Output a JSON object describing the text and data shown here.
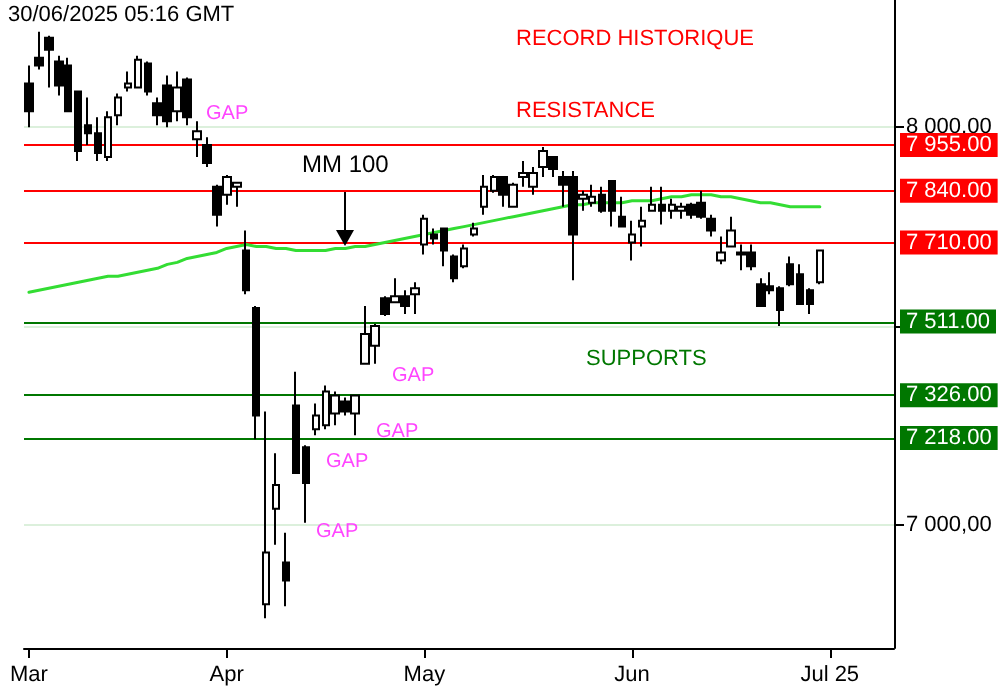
{
  "chart_data": {
    "type": "candlestick",
    "categories": [
      "Mar",
      null,
      null,
      null,
      null,
      null,
      null,
      null,
      null,
      null,
      null,
      null,
      null,
      null,
      null,
      null,
      null,
      null,
      null,
      null,
      "Apr",
      null,
      null,
      null,
      null,
      null,
      null,
      null,
      null,
      null,
      null,
      null,
      null,
      null,
      null,
      null,
      null,
      null,
      null,
      null,
      "May",
      null,
      null,
      null,
      null,
      null,
      null,
      null,
      null,
      null,
      null,
      null,
      null,
      null,
      null,
      null,
      null,
      null,
      null,
      null,
      null,
      "Jun",
      null,
      null,
      null,
      null,
      null,
      null,
      null,
      null,
      null,
      null,
      null,
      null,
      null,
      null,
      null,
      null,
      null,
      null,
      null,
      "Jul 25",
      null,
      null,
      null,
      null,
      null,
      null
    ],
    "series": [
      {
        "type": "candlestick",
        "color": "#000000",
        "ohlc": [
          [
            8110,
            8155,
            8000,
            8040
          ],
          [
            8175,
            8240,
            8145,
            8155
          ],
          [
            8225,
            8230,
            8100,
            8195
          ],
          [
            8165,
            8180,
            8080,
            8105
          ],
          [
            8155,
            8175,
            8040,
            8040
          ],
          [
            8090,
            8090,
            7915,
            7940
          ],
          [
            8005,
            8075,
            7955,
            7985
          ],
          [
            7985,
            8025,
            7915,
            7935
          ],
          [
            7925,
            8040,
            7915,
            8025
          ],
          [
            8030,
            8085,
            8005,
            8075
          ],
          [
            8100,
            8140,
            8090,
            8110
          ],
          [
            8100,
            8180,
            8100,
            8170
          ],
          [
            8160,
            8165,
            8080,
            8090
          ],
          [
            8060,
            8075,
            8005,
            8030
          ],
          [
            8105,
            8130,
            8000,
            8015
          ],
          [
            8040,
            8140,
            8015,
            8100
          ],
          [
            8120,
            8125,
            8005,
            8025
          ],
          [
            7970,
            8015,
            7925,
            7990
          ],
          [
            7955,
            7975,
            7900,
            7910
          ],
          [
            7850,
            7855,
            7750,
            7780
          ],
          [
            7830,
            7880,
            7805,
            7875
          ],
          [
            7850,
            7860,
            7800,
            7860
          ],
          [
            7690,
            7740,
            7580,
            7590
          ],
          [
            7545,
            7550,
            7215,
            7275
          ],
          [
            6800,
            7285,
            6765,
            6930
          ],
          [
            7040,
            7180,
            6950,
            7100
          ],
          [
            6905,
            6980,
            6795,
            6860
          ],
          [
            7300,
            7385,
            7130,
            7130
          ],
          [
            7195,
            7200,
            7005,
            7105
          ],
          [
            7240,
            7305,
            7225,
            7275
          ],
          [
            7250,
            7350,
            7240,
            7335
          ],
          [
            7280,
            7335,
            7250,
            7325
          ],
          [
            7310,
            7320,
            7275,
            7285
          ],
          [
            7280,
            7325,
            7225,
            7325
          ],
          [
            7405,
            7550,
            7405,
            7480
          ],
          [
            7450,
            7505,
            7405,
            7500
          ],
          [
            7570,
            7575,
            7525,
            7530
          ],
          [
            7560,
            7620,
            7560,
            7575
          ],
          [
            7575,
            7590,
            7530,
            7550
          ],
          [
            7580,
            7610,
            7530,
            7595
          ],
          [
            7705,
            7780,
            7680,
            7770
          ],
          [
            7730,
            7745,
            7705,
            7720
          ],
          [
            7745,
            7745,
            7650,
            7690
          ],
          [
            7675,
            7680,
            7610,
            7620
          ],
          [
            7650,
            7705,
            7645,
            7695
          ],
          [
            7730,
            7760,
            7725,
            7745
          ],
          [
            7800,
            7880,
            7780,
            7850
          ],
          [
            7840,
            7880,
            7835,
            7875
          ],
          [
            7875,
            7875,
            7800,
            7830
          ],
          [
            7800,
            7860,
            7800,
            7855
          ],
          [
            7875,
            7915,
            7850,
            7885
          ],
          [
            7850,
            7900,
            7830,
            7885
          ],
          [
            7900,
            7950,
            7875,
            7940
          ],
          [
            7925,
            7925,
            7875,
            7895
          ],
          [
            7875,
            7890,
            7800,
            7855
          ],
          [
            7875,
            7890,
            7615,
            7730
          ],
          [
            7820,
            7840,
            7790,
            7830
          ],
          [
            7810,
            7855,
            7800,
            7825
          ],
          [
            7830,
            7850,
            7785,
            7790
          ],
          [
            7865,
            7865,
            7750,
            7790
          ],
          [
            7775,
            7825,
            7750,
            7750
          ],
          [
            7710,
            7765,
            7665,
            7730
          ],
          [
            7750,
            7800,
            7700,
            7765
          ],
          [
            7790,
            7850,
            7790,
            7805
          ],
          [
            7805,
            7850,
            7755,
            7790
          ],
          [
            7790,
            7820,
            7770,
            7805
          ],
          [
            7790,
            7810,
            7770,
            7800
          ],
          [
            7805,
            7810,
            7770,
            7780
          ],
          [
            7810,
            7840,
            7770,
            7775
          ],
          [
            7770,
            7780,
            7725,
            7740
          ],
          [
            7665,
            7725,
            7655,
            7685
          ],
          [
            7700,
            7775,
            7700,
            7740
          ],
          [
            7685,
            7705,
            7640,
            7680
          ],
          [
            7685,
            7705,
            7640,
            7650
          ],
          [
            7605,
            7620,
            7550,
            7550
          ],
          [
            7600,
            7635,
            7580,
            7590
          ],
          [
            7595,
            7600,
            7500,
            7540
          ],
          [
            7655,
            7675,
            7600,
            7605
          ],
          [
            7630,
            7655,
            7555,
            7555
          ],
          [
            7590,
            7595,
            7530,
            7555
          ],
          [
            7610,
            7690,
            7605,
            7690
          ],
          null,
          null,
          null,
          null,
          null,
          null,
          null
        ]
      },
      {
        "type": "line",
        "color": "#33dd33",
        "values": [
          7585,
          7590,
          7595,
          7600,
          7605,
          7610,
          7615,
          7620,
          7625,
          7625,
          7630,
          7635,
          7640,
          7645,
          7655,
          7660,
          7670,
          7675,
          7680,
          7685,
          7695,
          7700,
          7705,
          7700,
          7700,
          7695,
          7695,
          7690,
          7690,
          7690,
          7690,
          7695,
          7695,
          7700,
          7700,
          7705,
          7710,
          7715,
          7720,
          7725,
          7730,
          7735,
          7740,
          7745,
          7750,
          7755,
          7760,
          7765,
          7770,
          7775,
          7780,
          7785,
          7790,
          7795,
          7800,
          7805,
          7805,
          7810,
          7810,
          7810,
          7810,
          7815,
          7815,
          7815,
          7820,
          7825,
          7825,
          7830,
          7830,
          7830,
          7825,
          7825,
          7820,
          7815,
          7810,
          7810,
          7805,
          7800,
          7800,
          7800,
          7800,
          null,
          null,
          null,
          null,
          null,
          null,
          null
        ]
      }
    ],
    "ylim": [
      6690,
      8320
    ],
    "yticks": [
      {
        "value": 7000,
        "label": "7 000,00"
      },
      {
        "value": 7500,
        "label": null
      },
      {
        "value": 8000,
        "label": "8 000,00"
      }
    ],
    "grid": "y",
    "marker": "none",
    "ref_lines": [
      {
        "axis": "y",
        "value": 7955,
        "label": "7 955.00",
        "color": "#ff0000"
      },
      {
        "axis": "y",
        "value": 7840,
        "label": "7 840.00",
        "color": "#ff0000"
      },
      {
        "axis": "y",
        "value": 7710,
        "label": "7 710.00",
        "color": "#ff0000"
      },
      {
        "axis": "y",
        "value": 7511,
        "label": "7 511.00",
        "color": "#007700"
      },
      {
        "axis": "y",
        "value": 7326,
        "label": "7 326.00",
        "color": "#007700"
      },
      {
        "axis": "y",
        "value": 7218,
        "label": "7 218.00",
        "color": "#007700"
      }
    ],
    "annotations": [
      "30/06/2025 05:16 GMT",
      "RECORD HISTORIQUE",
      "RESISTANCE",
      "SUPPORTS",
      "GAP",
      "GAP",
      "GAP",
      "GAP",
      "GAP",
      "MM 100"
    ]
  }
}
